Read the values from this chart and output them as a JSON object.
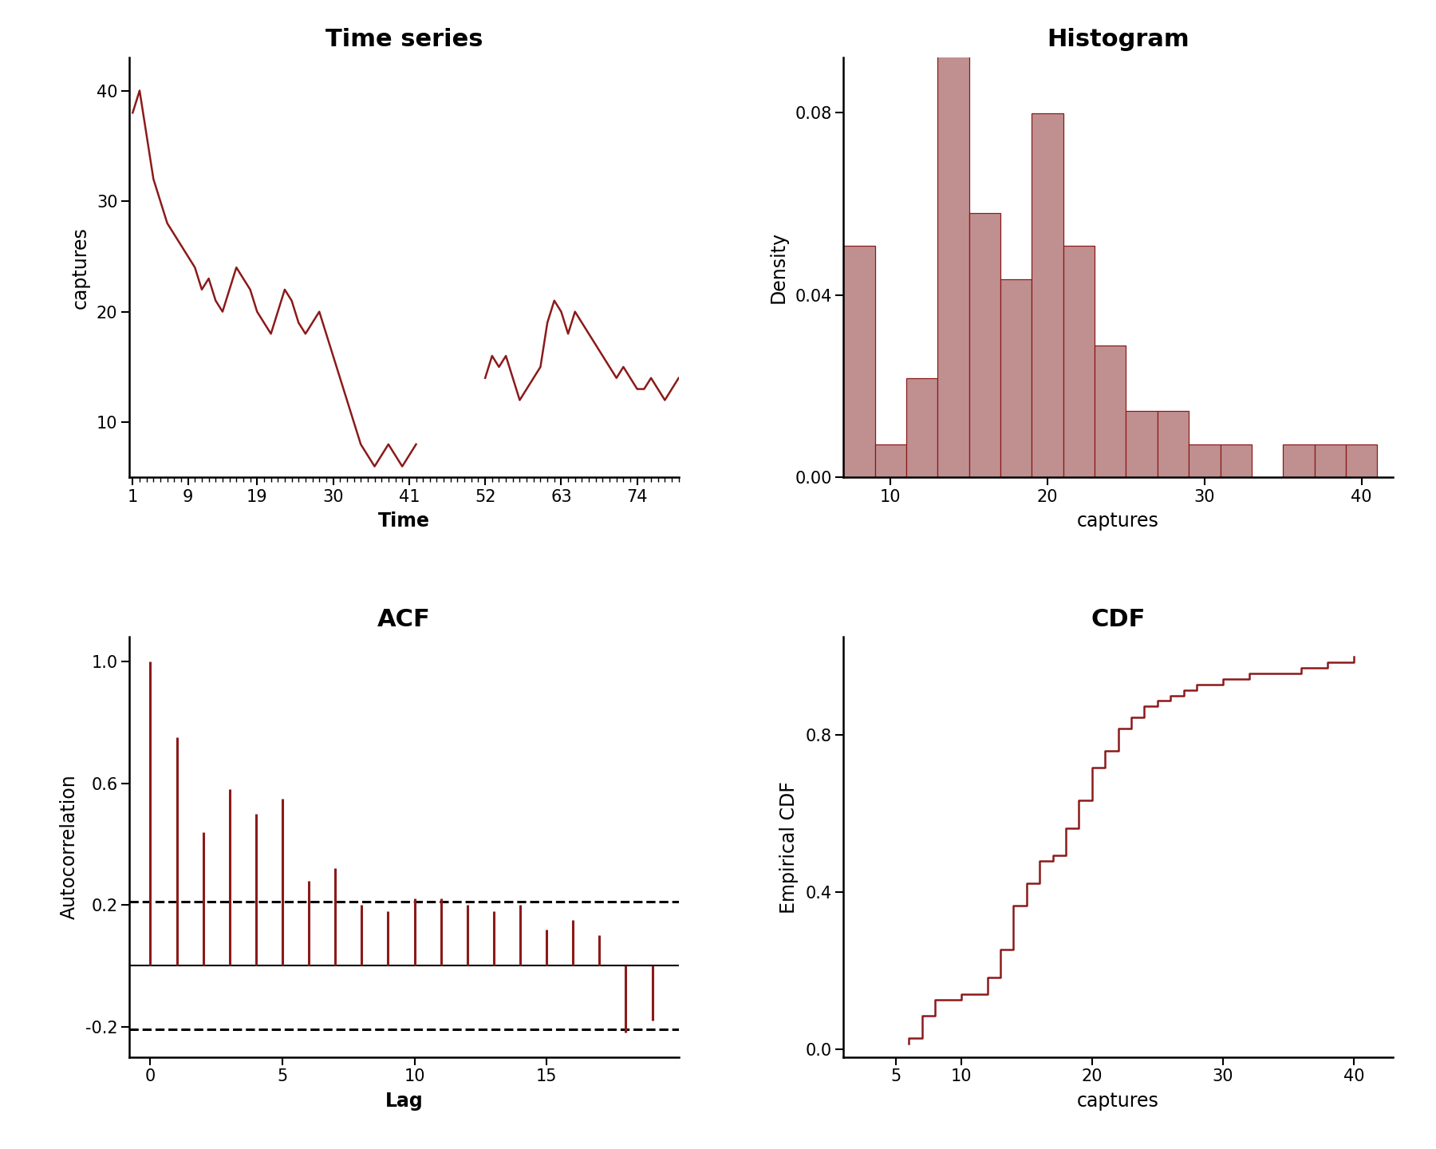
{
  "ts_color": "#8B1A1A",
  "hist_color": "#C09090",
  "hist_edge_color": "#8B1A1A",
  "acf_color": "#8B1A1A",
  "cdf_color": "#8B1A1A",
  "background_color": "#FFFFFF",
  "ts_title": "Time series",
  "hist_title": "Histogram",
  "acf_title": "ACF",
  "cdf_title": "CDF",
  "ts_xlabel": "Time",
  "ts_ylabel": "captures",
  "hist_xlabel": "captures",
  "hist_ylabel": "Density",
  "acf_xlabel": "Lag",
  "acf_ylabel": "Autocorrelation",
  "cdf_xlabel": "captures",
  "cdf_ylabel": "Empirical CDF",
  "ts_xticks": [
    1,
    9,
    19,
    30,
    41,
    52,
    63,
    74
  ],
  "ts_yticks": [
    10,
    20,
    30,
    40
  ],
  "hist_xticks": [
    10,
    20,
    30,
    40
  ],
  "hist_yticks": [
    0.0,
    0.04,
    0.08
  ],
  "acf_xticks": [
    0,
    5,
    10,
    15
  ],
  "acf_yticks": [
    -0.2,
    0.2,
    0.6,
    1.0
  ],
  "cdf_xticks": [
    5,
    10,
    20,
    30,
    40
  ],
  "cdf_yticks": [
    0.0,
    0.4,
    0.8
  ],
  "acf_ci": 0.21,
  "title_fontsize": 22,
  "label_fontsize": 17,
  "tick_fontsize": 15,
  "ts_data": [
    38,
    40,
    36,
    32,
    30,
    28,
    27,
    26,
    25,
    24,
    22,
    23,
    21,
    20,
    22,
    24,
    23,
    22,
    20,
    19,
    18,
    20,
    22,
    21,
    19,
    18,
    19,
    20,
    18,
    16,
    14,
    12,
    10,
    8,
    7,
    6,
    7,
    8,
    7,
    6,
    7,
    8,
    null,
    null,
    null,
    null,
    null,
    null,
    null,
    null,
    null,
    14,
    16,
    15,
    16,
    14,
    12,
    13,
    14,
    15,
    19,
    21,
    20,
    18,
    20,
    19,
    18,
    17,
    16,
    15,
    14,
    15,
    14,
    13,
    13,
    14,
    13,
    12,
    13,
    14
  ],
  "acf_values": [
    1.0,
    0.75,
    0.44,
    0.58,
    0.5,
    0.55,
    0.28,
    0.32,
    0.2,
    0.18,
    0.22,
    0.22,
    0.2,
    0.18,
    0.2,
    0.12,
    0.15,
    0.1,
    -0.22,
    -0.18
  ]
}
